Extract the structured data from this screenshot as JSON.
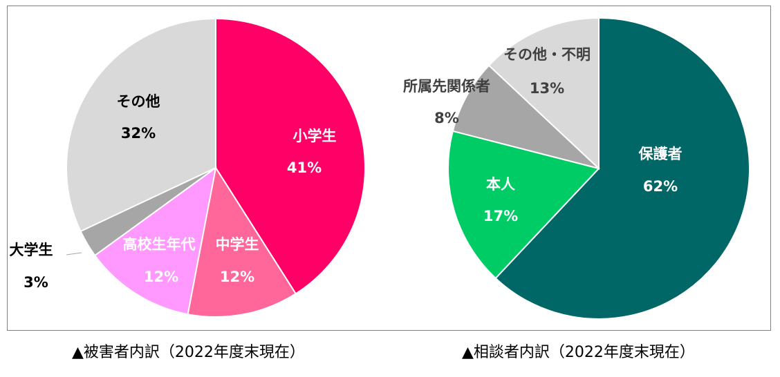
{
  "chart_data": [
    {
      "type": "pie",
      "caption": "▲被害者内訳（2022年度末現在）",
      "slices": [
        {
          "label": "小学生",
          "value": 41,
          "value_label": "41%",
          "color": "#ff0066",
          "text_color": "#ffffff"
        },
        {
          "label": "中学生",
          "value": 12,
          "value_label": "12%",
          "color": "#ff6699",
          "text_color": "#ffffff"
        },
        {
          "label": "高校生年代",
          "value": 12,
          "value_label": "12%",
          "color": "#ff99ff",
          "text_color": "#ffffff"
        },
        {
          "label": "大学生",
          "value": 3,
          "value_label": "3%",
          "color": "#a6a6a6",
          "text_color": "#000000"
        },
        {
          "label": "その他",
          "value": 32,
          "value_label": "32%",
          "color": "#d9d9d9",
          "text_color": "#000000"
        }
      ]
    },
    {
      "type": "pie",
      "caption": "▲相談者内訳（2022年度末現在）",
      "slices": [
        {
          "label": "保護者",
          "value": 62,
          "value_label": "62%",
          "color": "#006666",
          "text_color": "#ffffff"
        },
        {
          "label": "本人",
          "value": 17,
          "value_label": "17%",
          "color": "#00cc66",
          "text_color": "#ffffff"
        },
        {
          "label": "所属先関係者",
          "value": 8,
          "value_label": "8%",
          "color": "#a6a6a6",
          "text_color": "#404040"
        },
        {
          "label": "その他・不明",
          "value": 13,
          "value_label": "13%",
          "color": "#d9d9d9",
          "text_color": "#404040"
        }
      ]
    }
  ]
}
